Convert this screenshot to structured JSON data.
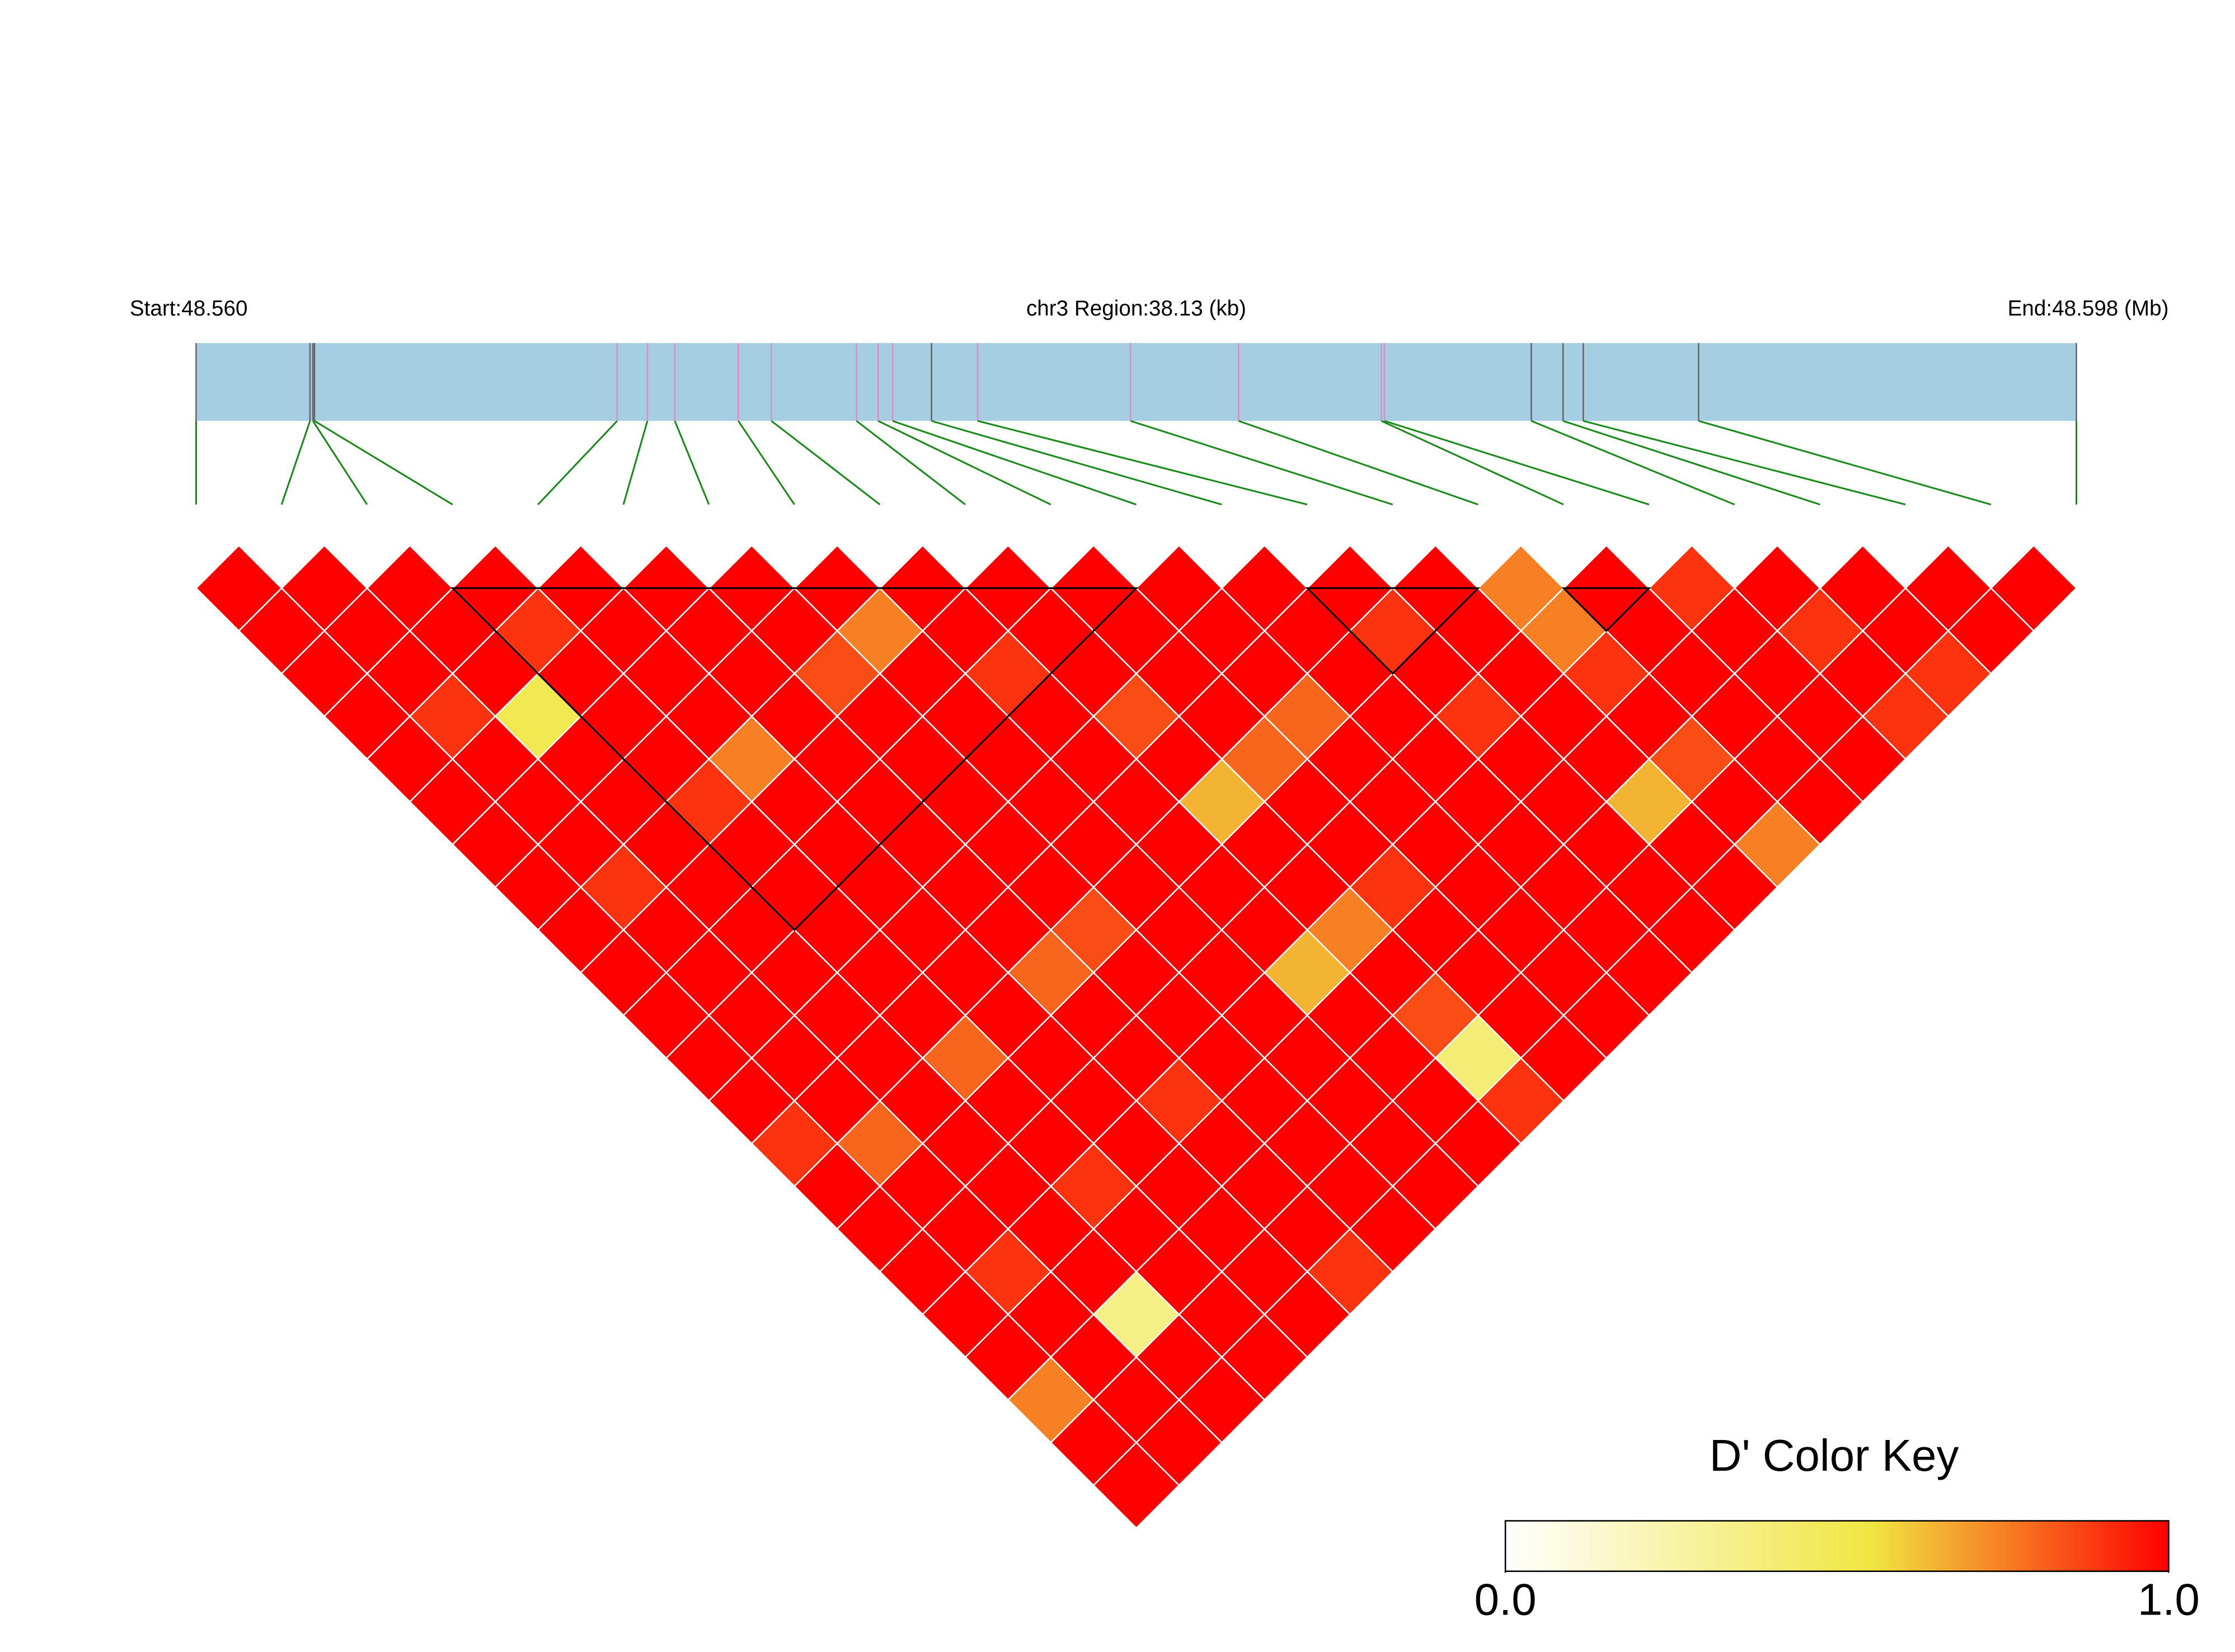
{
  "chart_data": {
    "type": "ld-heatmap",
    "start_label": "Start:48.560",
    "region_label": "chr3 Region:38.13 (kb)",
    "end_label": "End:48.598 (Mb)",
    "xlim": [
      48.56,
      48.59813
    ],
    "snp_positions": [
      48.56,
      48.56231,
      48.562369,
      48.5624,
      48.568538,
      48.569152,
      48.569708,
      48.570995,
      48.571667,
      48.573392,
      48.573831,
      48.574123,
      48.574913,
      48.575849,
      48.578948,
      48.581141,
      48.584036,
      48.5841,
      48.587077,
      48.58772,
      48.58813,
      48.590469,
      48.59813
    ],
    "marker_colors": [
      "#666666",
      "#666666",
      "#666666",
      "#666666",
      "#e78ac3",
      "#e78ac3",
      "#e78ac3",
      "#e78ac3",
      "#e78ac3",
      "#e78ac3",
      "#e78ac3",
      "#e78ac3",
      "#666666",
      "#e78ac3",
      "#e78ac3",
      "#e78ac3",
      "#e78ac3",
      "#e78ac3",
      "#666666",
      "#666666",
      "#666666",
      "#666666",
      "#666666"
    ],
    "bar_color": "#a6cee3",
    "connector_color": "#1a8a1a",
    "dprime": [
      [
        1,
        1,
        1,
        1,
        1,
        1,
        1,
        1,
        1,
        1,
        1,
        1,
        1,
        1,
        1,
        0.75,
        1,
        0.9,
        1,
        1,
        1,
        1
      ],
      [
        1,
        1,
        1,
        0.9,
        1,
        1,
        1,
        0.75,
        1,
        1,
        1,
        1,
        1,
        0.9,
        1,
        0.75,
        1,
        1,
        0.9,
        1,
        1
      ],
      [
        1,
        1,
        1,
        1,
        1,
        1,
        0.85,
        1,
        0.9,
        1,
        1,
        1,
        1,
        1,
        1,
        0.9,
        1,
        1,
        1,
        0.9
      ],
      [
        1,
        0.9,
        0.5,
        1,
        1,
        1,
        1,
        1,
        1,
        0.85,
        1,
        0.8,
        1,
        0.9,
        1,
        1,
        1,
        1,
        0.9
      ],
      [
        1,
        1,
        1,
        1,
        0.75,
        1,
        1,
        1,
        1,
        1,
        0.8,
        1,
        1,
        1,
        1,
        0.85,
        1,
        1
      ],
      [
        1,
        1,
        1,
        0.9,
        1,
        1,
        1,
        1,
        1,
        0.65,
        1,
        1,
        1,
        1,
        0.65,
        1,
        1
      ],
      [
        1,
        1,
        1,
        1,
        1,
        1,
        1,
        1,
        1,
        1,
        1,
        1,
        1,
        1,
        1,
        0.75
      ],
      [
        1,
        0.9,
        1,
        1,
        1,
        1,
        1,
        1,
        1,
        1,
        0.9,
        1,
        1,
        1,
        1
      ],
      [
        1,
        1,
        1,
        1,
        1,
        1,
        0.85,
        1,
        1,
        0.75,
        1,
        1,
        1,
        1
      ],
      [
        1,
        1,
        1,
        1,
        1,
        0.8,
        1,
        1,
        0.65,
        1,
        1,
        1,
        1
      ],
      [
        1,
        1,
        1,
        1,
        1,
        1,
        1,
        1,
        1,
        0.85,
        1,
        1
      ],
      [
        1,
        1,
        1,
        0.8,
        1,
        1,
        1,
        1,
        1,
        0.4,
        1
      ],
      [
        1,
        1,
        1,
        1,
        1,
        0.9,
        1,
        1,
        1,
        0.9
      ],
      [
        0.9,
        0.8,
        1,
        1,
        1,
        1,
        1,
        1,
        1
      ],
      [
        1,
        1,
        1,
        0.9,
        1,
        1,
        1,
        1
      ],
      [
        1,
        1,
        1,
        1,
        1,
        1,
        1
      ],
      [
        1,
        0.9,
        1,
        1,
        1,
        0.9
      ],
      [
        1,
        1,
        0.35,
        1,
        1
      ],
      [
        1,
        1,
        1,
        1
      ],
      [
        0.75,
        1,
        1
      ],
      [
        1,
        1
      ],
      [
        1
      ]
    ],
    "blocks": [
      {
        "start": 3,
        "end": 11
      },
      {
        "start": 13,
        "end": 15
      },
      {
        "start": 16,
        "end": 17
      }
    ],
    "color_scale": [
      {
        "value": 0,
        "color": "#ffffff"
      },
      {
        "value": 0.55,
        "color": "#f0e641"
      },
      {
        "value": 1,
        "color": "#ff0000"
      }
    ],
    "key_title": "D' Color Key",
    "key_lim": [
      0,
      1
    ],
    "key_ticks": [
      {
        "value": 0,
        "label": "0.0"
      },
      {
        "value": 1,
        "label": "1.0"
      }
    ]
  }
}
